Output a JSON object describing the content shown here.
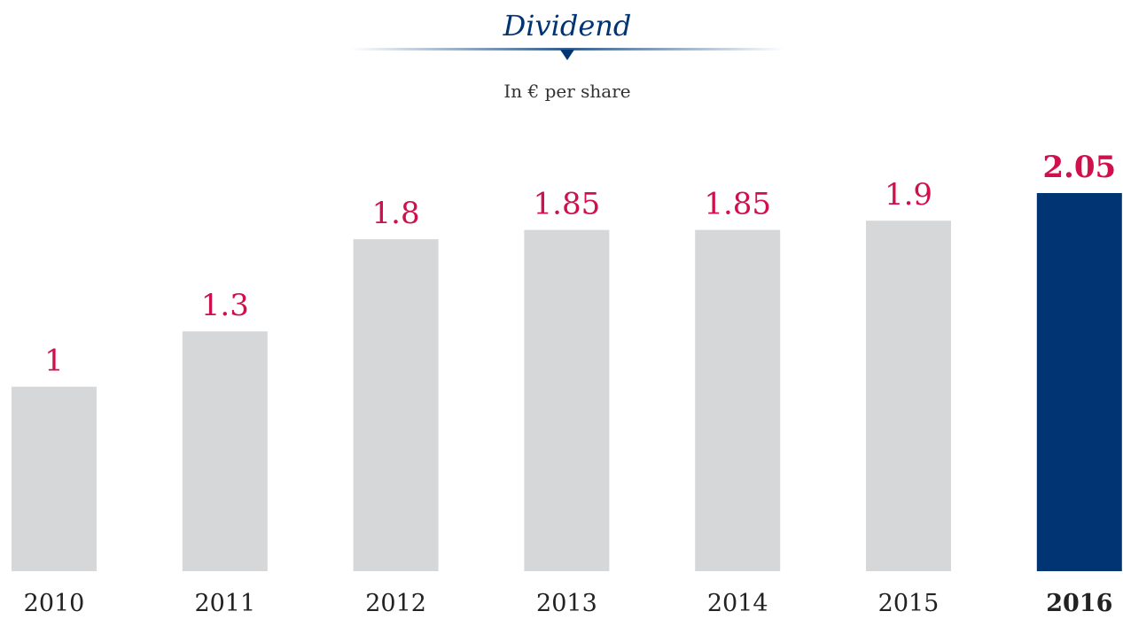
{
  "chart_data": {
    "type": "bar",
    "title": "Dividend",
    "subtitle": "In € per share",
    "categories": [
      "2010",
      "2011",
      "2012",
      "2013",
      "2014",
      "2015",
      "2016"
    ],
    "values": [
      1,
      1.3,
      1.8,
      1.85,
      1.85,
      1.9,
      2.05
    ],
    "colors": [
      "#d6d7d9",
      "#d6d7d9",
      "#d6d7d9",
      "#d6d7d9",
      "#d6d7d9",
      "#d6d7d9",
      "#003473"
    ],
    "bold": [
      false,
      false,
      false,
      false,
      false,
      false,
      true
    ],
    "label_color": "#d0104c"
  }
}
